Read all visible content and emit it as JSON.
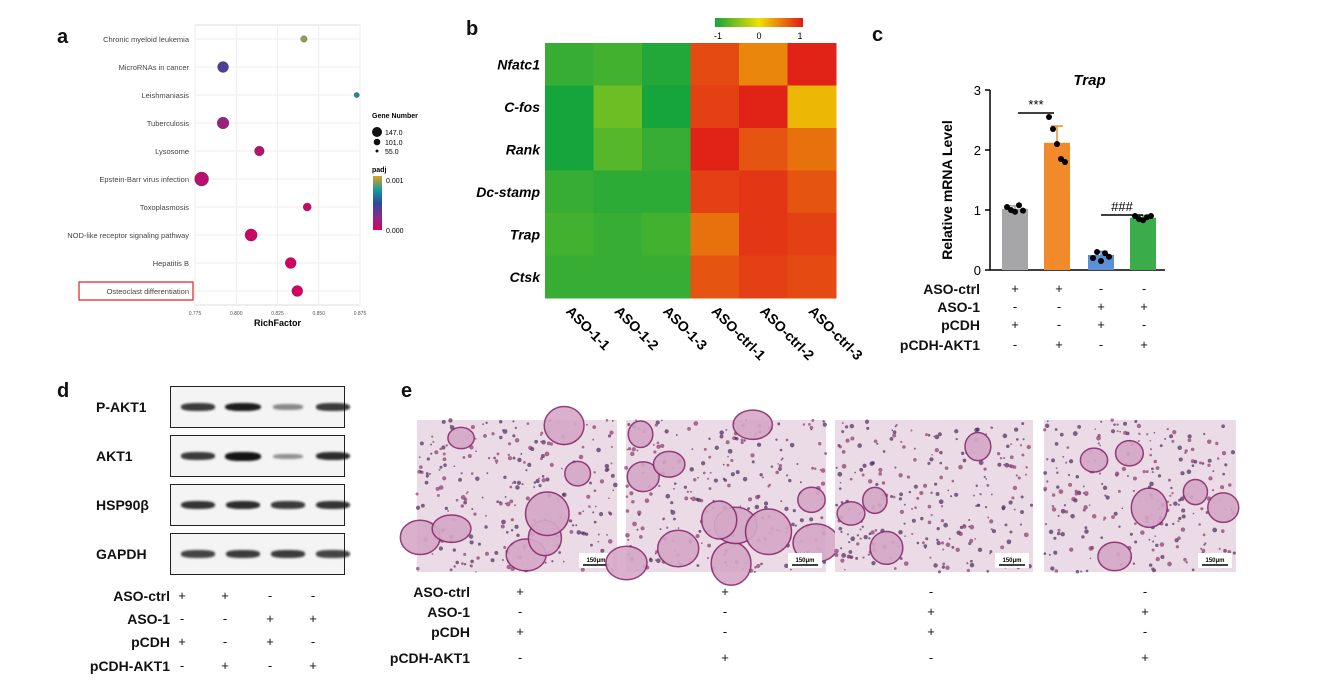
{
  "panels": {
    "a": "a",
    "b": "b",
    "c": "c",
    "d": "d",
    "e": "e"
  },
  "panel_a": {
    "pathways": [
      {
        "name": "Chronic myeloid leukemia",
        "rich": 0.841,
        "size": 55,
        "padj": 0.0009
      },
      {
        "name": "MicroRNAs in cancer",
        "rich": 0.792,
        "size": 110,
        "padj": 0.0004
      },
      {
        "name": "Leishmaniasis",
        "rich": 0.873,
        "size": 40,
        "padj": 0.0007
      },
      {
        "name": "Tuberculosis",
        "rich": 0.792,
        "size": 120,
        "padj": 0.0002
      },
      {
        "name": "Lysosome",
        "rich": 0.814,
        "size": 95,
        "padj": 0.0001
      },
      {
        "name": "Epstein-Barr virus infection",
        "rich": 0.779,
        "size": 147,
        "padj": 0.0001
      },
      {
        "name": "Toxoplasmosis",
        "rich": 0.843,
        "size": 75,
        "padj": 5e-05
      },
      {
        "name": "NOD-like receptor signaling pathway",
        "rich": 0.809,
        "size": 125,
        "padj": 3e-05
      },
      {
        "name": "Hepatitis B",
        "rich": 0.833,
        "size": 110,
        "padj": 2e-05
      },
      {
        "name": "Osteoclast differentiation",
        "rich": 0.837,
        "size": 110,
        "padj": 1e-05
      }
    ],
    "xticks": [
      "0.775",
      "0.800",
      "0.825",
      "0.850",
      "0.875"
    ],
    "xlabel": "RichFactor",
    "size_legend_title": "Gene Number",
    "size_legend": [
      "147.0",
      "101.0",
      "55.0"
    ],
    "color_legend_title": "padj",
    "color_legend": [
      "0.001",
      "0.000"
    ],
    "highlight": "Osteoclast differentiation"
  },
  "panel_b": {
    "genes": [
      "Nfatc1",
      "C-fos",
      "Rank",
      "Dc-stamp",
      "Trap",
      "Ctsk"
    ],
    "samples": [
      "ASO-1-1",
      "ASO-1-2",
      "ASO-1-3",
      "ASO-ctrl-1",
      "ASO-ctrl-2",
      "ASO-ctrl-3"
    ],
    "scale_ticks": [
      "-1",
      "0",
      "1"
    ],
    "matrix": [
      [
        -0.85,
        -0.8,
        -0.95,
        0.75,
        0.45,
        0.95
      ],
      [
        -1.0,
        -0.6,
        -1.0,
        0.8,
        0.95,
        0.2
      ],
      [
        -1.0,
        -0.7,
        -0.85,
        0.95,
        0.7,
        0.55
      ],
      [
        -0.85,
        -0.9,
        -0.9,
        0.8,
        0.85,
        0.7
      ],
      [
        -0.8,
        -0.85,
        -0.8,
        0.55,
        0.85,
        0.8
      ],
      [
        -0.85,
        -0.85,
        -0.85,
        0.7,
        0.8,
        0.75
      ]
    ]
  },
  "chart_data": {
    "type": "bar",
    "title": "Trap",
    "ylabel": "Relative mRNA Level",
    "ylim": [
      0,
      3
    ],
    "yticks": [
      "0",
      "1",
      "2",
      "3"
    ],
    "categories": [
      "ASO-ctrl+pCDH",
      "ASO-ctrl+pCDH-AKT1",
      "ASO-1+pCDH",
      "ASO-1+pCDH-AKT1"
    ],
    "values": [
      1.02,
      2.12,
      0.25,
      0.87
    ],
    "errors": [
      0.05,
      0.28,
      0.06,
      0.04
    ],
    "points": [
      [
        1.05,
        1.0,
        0.97,
        1.08,
        0.99
      ],
      [
        2.55,
        2.35,
        2.1,
        1.85,
        1.8
      ],
      [
        0.2,
        0.3,
        0.15,
        0.28,
        0.22
      ],
      [
        0.9,
        0.85,
        0.83,
        0.88,
        0.9
      ]
    ],
    "colors": [
      "#a6a6a8",
      "#f08a2a",
      "#5b8fd6",
      "#3aad4a"
    ],
    "sig": [
      "***",
      "###"
    ]
  },
  "panel_c": {
    "rows": [
      "ASO-ctrl",
      "ASO-1",
      "pCDH",
      "pCDH-AKT1"
    ],
    "signs": [
      [
        "+",
        "+",
        "-",
        "-"
      ],
      [
        "-",
        "-",
        "+",
        "+"
      ],
      [
        "+",
        "-",
        "+",
        "-"
      ],
      [
        "-",
        "+",
        "-",
        "+"
      ]
    ]
  },
  "panel_d": {
    "blots": [
      "P-AKT1",
      "AKT1",
      "HSP90β",
      "GAPDH"
    ],
    "intensity": [
      [
        0.75,
        0.95,
        0.25,
        0.75
      ],
      [
        0.75,
        1.0,
        0.2,
        0.85
      ],
      [
        0.8,
        0.85,
        0.75,
        0.8
      ],
      [
        0.7,
        0.75,
        0.75,
        0.7
      ]
    ],
    "rows": [
      "ASO-ctrl",
      "ASO-1",
      "pCDH",
      "pCDH-AKT1"
    ],
    "signs": [
      [
        "+",
        "+",
        "-",
        "-"
      ],
      [
        "-",
        "-",
        "+",
        "+"
      ],
      [
        "+",
        "-",
        "+",
        "-"
      ],
      [
        "-",
        "+",
        "-",
        "+"
      ]
    ]
  },
  "panel_e": {
    "scale_bar": "150μm",
    "rows": [
      "ASO-ctrl",
      "ASO-1",
      "pCDH",
      "pCDH-AKT1"
    ],
    "signs": [
      [
        "+",
        "+",
        "-",
        "-"
      ],
      [
        "-",
        "-",
        "+",
        "+"
      ],
      [
        "+",
        "-",
        "+",
        "-"
      ],
      [
        "-",
        "+",
        "-",
        "+"
      ]
    ]
  }
}
